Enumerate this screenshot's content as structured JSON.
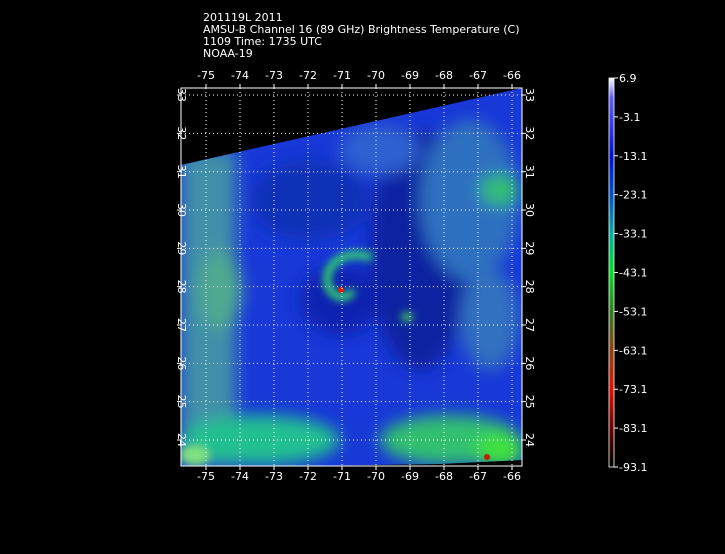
{
  "header": {
    "lines": [
      "201119L 2011",
      "AMSU-B Channel 16 (89 GHz) Brightness Temperature (C)",
      "1109 Time: 1735 UTC",
      "NOAA-19"
    ]
  },
  "map": {
    "lon_ticks": [
      -75,
      -74,
      -73,
      -72,
      -71,
      -70,
      -69,
      -68,
      -67,
      -66
    ],
    "lat_ticks": [
      33,
      32,
      31,
      30,
      29,
      28,
      27,
      26,
      25,
      24
    ]
  },
  "colorbar": {
    "ticks": [
      6.9,
      -3.1,
      -13.1,
      -23.1,
      -33.1,
      -43.1,
      -53.1,
      -63.1,
      -73.1,
      -83.1,
      -93.1
    ]
  }
}
